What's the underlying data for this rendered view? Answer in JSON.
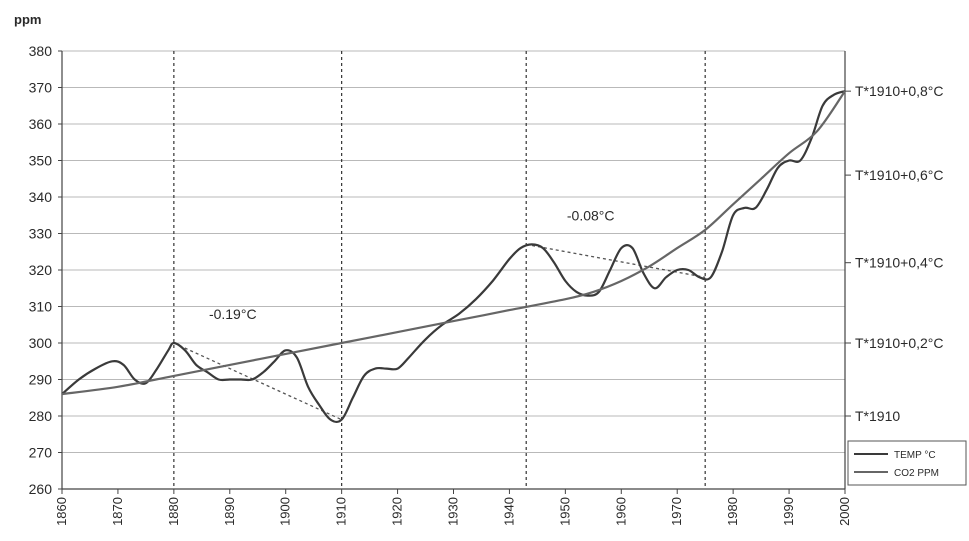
{
  "chart_data": {
    "type": "line",
    "ylabel": "ppm",
    "xlim": [
      1860,
      2000
    ],
    "ylim": [
      260,
      380
    ],
    "grid": true,
    "legend_position": "bottom-right",
    "x_ticks": [
      1860,
      1870,
      1880,
      1890,
      1900,
      1910,
      1920,
      1930,
      1940,
      1950,
      1960,
      1970,
      1980,
      1990,
      2000
    ],
    "y_ticks": [
      260,
      270,
      280,
      290,
      300,
      310,
      320,
      330,
      340,
      350,
      360,
      370,
      380
    ],
    "right_axis": {
      "labels": [
        {
          "ppm": 280,
          "text": "T*1910"
        },
        {
          "ppm": 300,
          "text": "T*1910+0,2°C"
        },
        {
          "ppm": 322,
          "text": "T*1910+0,4°C"
        },
        {
          "ppm": 346,
          "text": "T*1910+0,6°C"
        },
        {
          "ppm": 369,
          "text": "T*1910+0,8°C"
        }
      ]
    },
    "series": [
      {
        "name": "TEMP °C",
        "color": "#3a3a3a",
        "x": [
          1860,
          1863,
          1866,
          1869,
          1871,
          1873,
          1875,
          1877,
          1879,
          1880,
          1882,
          1884,
          1886,
          1888,
          1890,
          1892,
          1894,
          1896,
          1898,
          1900,
          1902,
          1904,
          1906,
          1908,
          1910,
          1912,
          1914,
          1916,
          1918,
          1920,
          1922,
          1925,
          1928,
          1931,
          1934,
          1937,
          1940,
          1942,
          1944,
          1946,
          1948,
          1950,
          1952,
          1954,
          1956,
          1958,
          1960,
          1962,
          1964,
          1966,
          1968,
          1970,
          1972,
          1974,
          1976,
          1978,
          1980,
          1982,
          1984,
          1986,
          1988,
          1990,
          1992,
          1994,
          1996,
          1998,
          2000
        ],
        "values": [
          286,
          290,
          293,
          295,
          294,
          290,
          289,
          293,
          298,
          300,
          298,
          294,
          292,
          290,
          290,
          290,
          290,
          292,
          295,
          298,
          296,
          288,
          283,
          279,
          279,
          285,
          291,
          293,
          293,
          293,
          296,
          301,
          305,
          308,
          312,
          317,
          323,
          326,
          327,
          326,
          322,
          317,
          314,
          313,
          314,
          320,
          326,
          326,
          319,
          315,
          318,
          320,
          320,
          318,
          318,
          325,
          335,
          337,
          337,
          342,
          348,
          350,
          350,
          356,
          365,
          368,
          369
        ]
      },
      {
        "name": "CO2 PPM",
        "color": "#666666",
        "x": [
          1860,
          1870,
          1880,
          1890,
          1900,
          1910,
          1920,
          1930,
          1940,
          1950,
          1955,
          1960,
          1965,
          1970,
          1975,
          1980,
          1985,
          1990,
          1995,
          2000
        ],
        "values": [
          286,
          288,
          291,
          294,
          297,
          300,
          303,
          306,
          309,
          312,
          314,
          317,
          321,
          326,
          331,
          338,
          345,
          352,
          358,
          369
        ]
      }
    ],
    "reference_years": [
      1880,
      1910,
      1943,
      1975
    ],
    "trend_lines": [
      {
        "label": "-0.19°C",
        "x": [
          1880,
          1910
        ],
        "values": [
          300,
          279
        ]
      },
      {
        "label": "-0.08°C",
        "x": [
          1943,
          1975
        ],
        "values": [
          327,
          318
        ]
      }
    ]
  }
}
